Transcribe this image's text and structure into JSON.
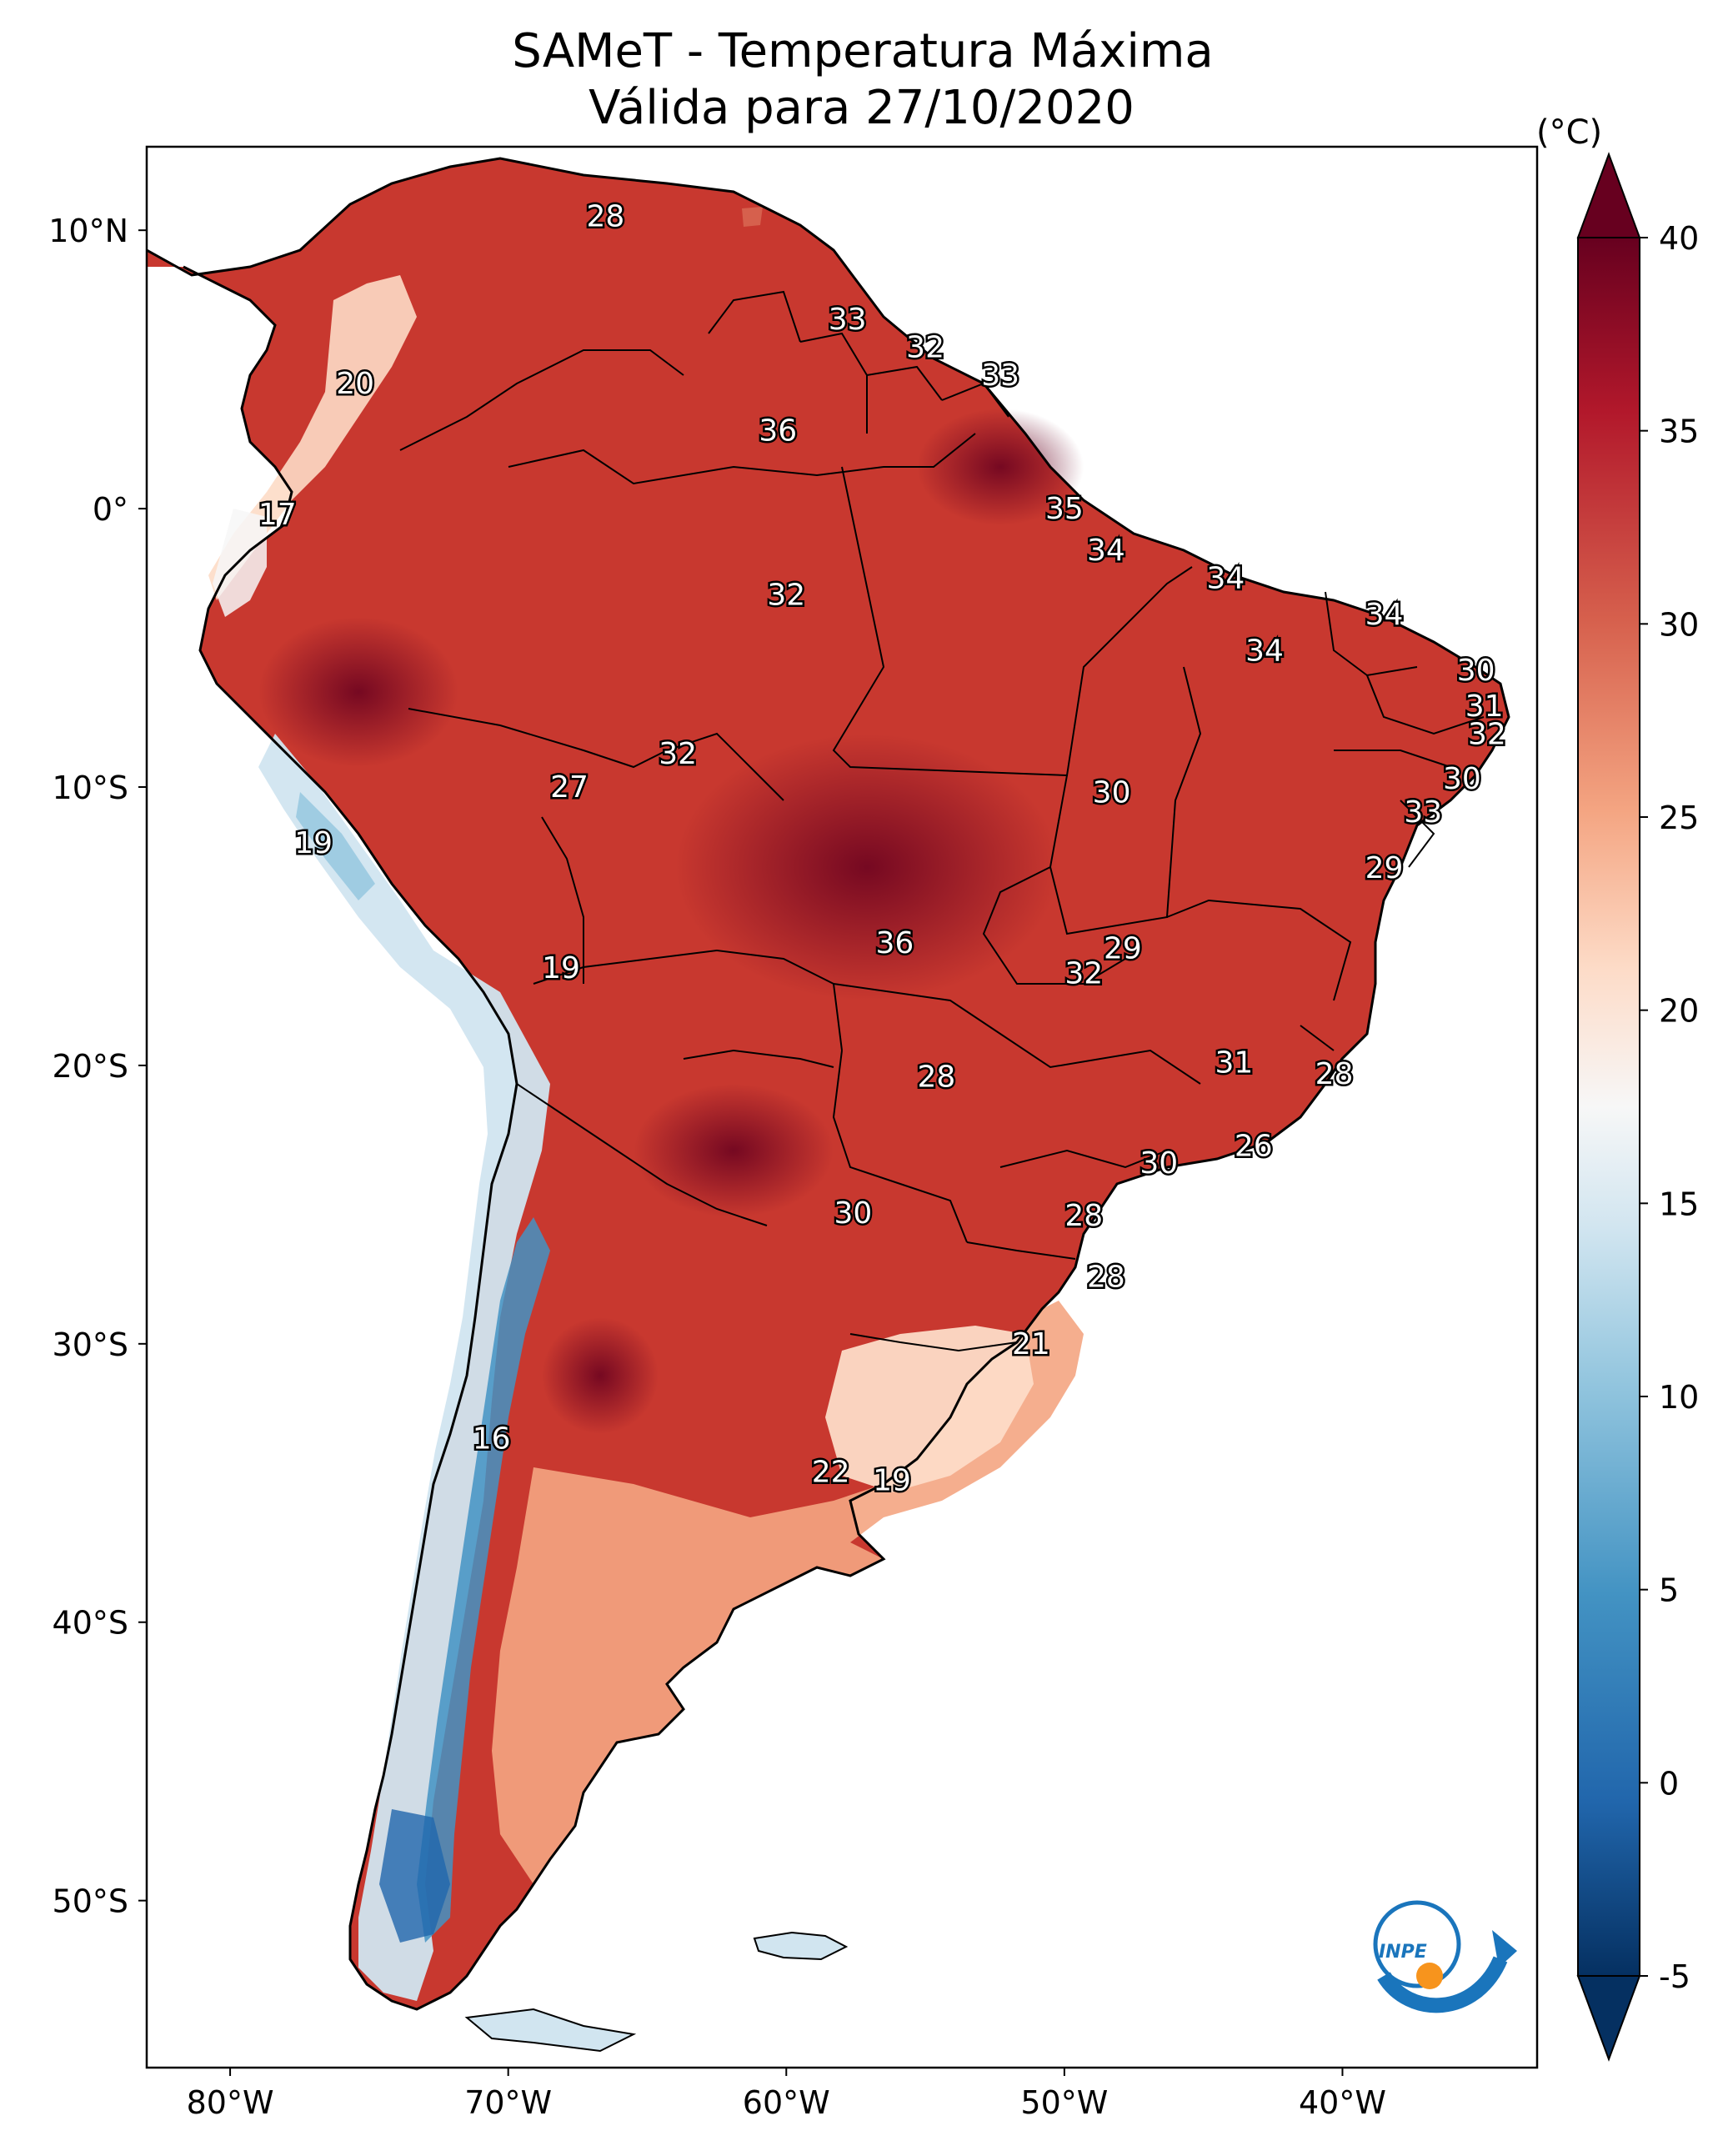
{
  "title_line1": "SAMeT - Temperatura Máxima",
  "title_line2": "Válida para 27/10/2020",
  "colorbar": {
    "unit_label": "(°C)",
    "min": -5,
    "max": 40,
    "ticks": [
      "40",
      "35",
      "30",
      "25",
      "20",
      "15",
      "10",
      "5",
      "0",
      "-5"
    ],
    "colors": [
      "#053061",
      "#2166ac",
      "#4393c3",
      "#92c5de",
      "#d1e5f0",
      "#f7f7f7",
      "#fddbc7",
      "#f4a582",
      "#d6604d",
      "#b2182b",
      "#67001f"
    ]
  },
  "axes": {
    "lat_labels": [
      "10°N",
      "0°",
      "10°S",
      "20°S",
      "30°S",
      "40°S",
      "50°S"
    ],
    "lon_labels": [
      "80°W",
      "70°W",
      "60°W",
      "50°W",
      "40°W"
    ]
  },
  "stations": [
    {
      "value": "28",
      "lon": -66.5,
      "lat": 10.5
    },
    {
      "value": "20",
      "lon": -75.5,
      "lat": 4.5
    },
    {
      "value": "17",
      "lon": -78.3,
      "lat": -0.2
    },
    {
      "value": "33",
      "lon": -57.8,
      "lat": 6.8
    },
    {
      "value": "32",
      "lon": -55.0,
      "lat": 5.8
    },
    {
      "value": "33",
      "lon": -52.3,
      "lat": 4.8
    },
    {
      "value": "36",
      "lon": -60.3,
      "lat": 2.8
    },
    {
      "value": "35",
      "lon": -50.0,
      "lat": 0.0
    },
    {
      "value": "32",
      "lon": -60.0,
      "lat": -3.1
    },
    {
      "value": "34",
      "lon": -48.5,
      "lat": -1.5
    },
    {
      "value": "34",
      "lon": -44.2,
      "lat": -2.5
    },
    {
      "value": "34",
      "lon": -38.5,
      "lat": -3.8
    },
    {
      "value": "34",
      "lon": -42.8,
      "lat": -5.1
    },
    {
      "value": "30",
      "lon": -35.2,
      "lat": -5.8
    },
    {
      "value": "31",
      "lon": -34.9,
      "lat": -7.1
    },
    {
      "value": "32",
      "lon": -34.8,
      "lat": -8.1
    },
    {
      "value": "30",
      "lon": -35.7,
      "lat": -9.7
    },
    {
      "value": "33",
      "lon": -37.1,
      "lat": -10.9
    },
    {
      "value": "32",
      "lon": -63.9,
      "lat": -8.8
    },
    {
      "value": "27",
      "lon": -67.8,
      "lat": -10.0
    },
    {
      "value": "30",
      "lon": -48.3,
      "lat": -10.2
    },
    {
      "value": "29",
      "lon": -38.5,
      "lat": -12.9
    },
    {
      "value": "19",
      "lon": -77.0,
      "lat": -12.0
    },
    {
      "value": "19",
      "lon": -68.1,
      "lat": -16.5
    },
    {
      "value": "36",
      "lon": -56.1,
      "lat": -15.6
    },
    {
      "value": "29",
      "lon": -47.9,
      "lat": -15.8
    },
    {
      "value": "32",
      "lon": -49.3,
      "lat": -16.7
    },
    {
      "value": "31",
      "lon": -43.9,
      "lat": -19.9
    },
    {
      "value": "28",
      "lon": -40.3,
      "lat": -20.3
    },
    {
      "value": "28",
      "lon": -54.6,
      "lat": -20.4
    },
    {
      "value": "30",
      "lon": -46.6,
      "lat": -23.5
    },
    {
      "value": "26",
      "lon": -43.2,
      "lat": -22.9
    },
    {
      "value": "30",
      "lon": -57.6,
      "lat": -25.3
    },
    {
      "value": "28",
      "lon": -49.3,
      "lat": -25.4
    },
    {
      "value": "28",
      "lon": -48.5,
      "lat": -27.6
    },
    {
      "value": "21",
      "lon": -51.2,
      "lat": -30.0
    },
    {
      "value": "16",
      "lon": -70.6,
      "lat": -33.4
    },
    {
      "value": "22",
      "lon": -58.4,
      "lat": -34.6
    },
    {
      "value": "19",
      "lon": -56.2,
      "lat": -34.9
    }
  ],
  "logo": {
    "text": "INPE",
    "colors": [
      "#1a75bc",
      "#f7941d"
    ]
  }
}
